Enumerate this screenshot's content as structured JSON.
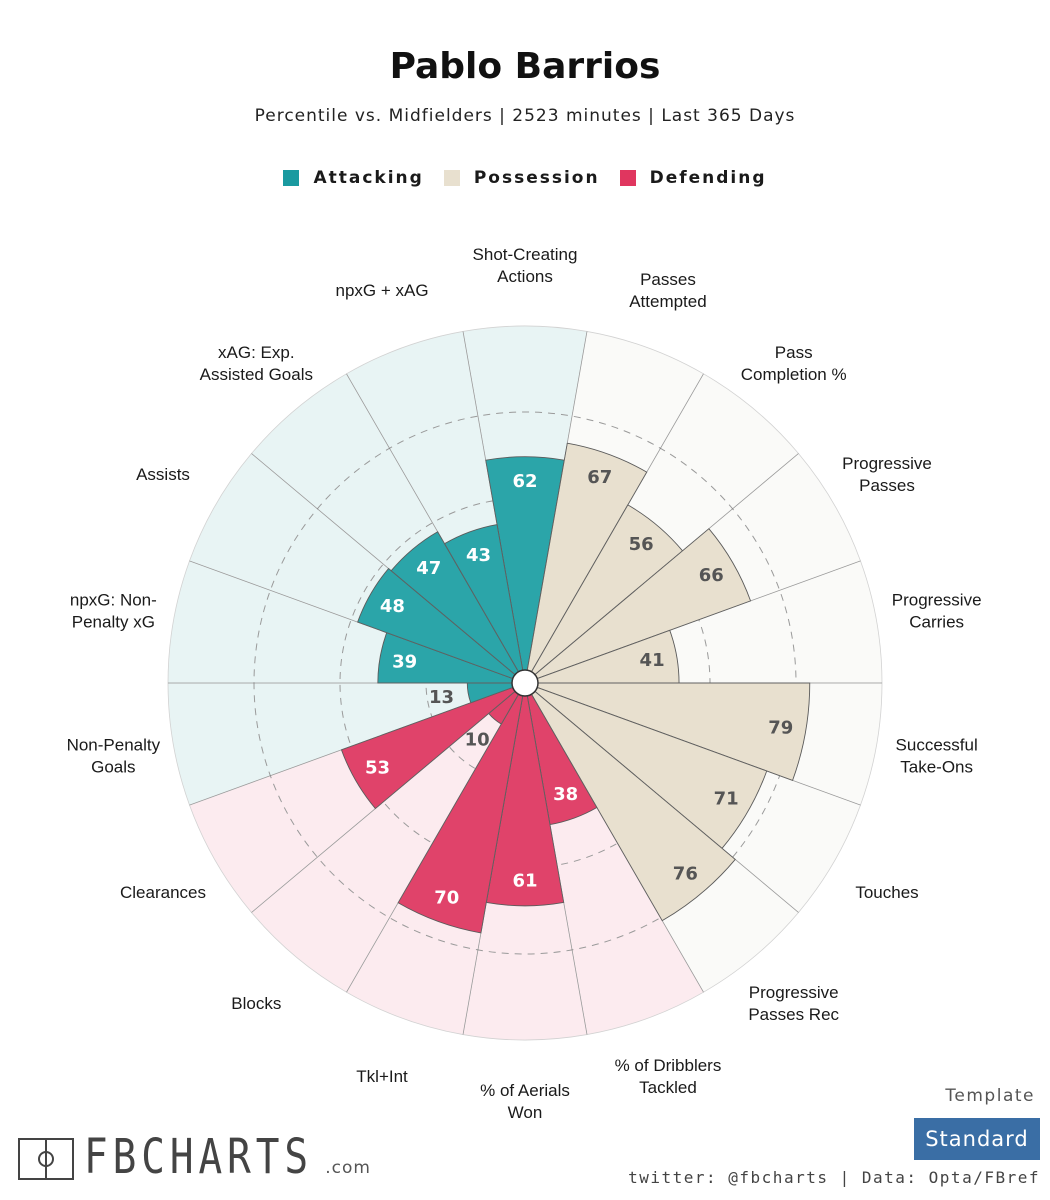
{
  "title": "Pablo Barrios",
  "subtitle": "Percentile vs. Midfielders | 2523 minutes | Last 365 Days",
  "legend": [
    {
      "label": "Attacking",
      "color": "#1a9aa0"
    },
    {
      "label": "Possession",
      "color": "#e8e0cf"
    },
    {
      "label": "Defending",
      "color": "#e0365f"
    }
  ],
  "template_label": "Template",
  "template_value": "Standard",
  "footer": "twitter: @fbcharts | Data: Opta/FBref",
  "logo": {
    "text": "FBCHARTS",
    "suffix": ".com"
  },
  "colors": {
    "attacking": "#2ba5a9",
    "attacking_bg": "#e8f4f4",
    "possession": "#e8e0cf",
    "possession_bg": "#fafaf8",
    "defending": "#e0436a",
    "defending_bg": "#fcebef"
  },
  "chart_data": {
    "type": "polar-bar",
    "title": "Pablo Barrios",
    "rlim": [
      0,
      100
    ],
    "categories": [
      {
        "label": "Shot-Creating\nActions",
        "value": 62,
        "group": "Attacking"
      },
      {
        "label": "Passes\nAttempted",
        "value": 67,
        "group": "Possession"
      },
      {
        "label": "Pass\nCompletion %",
        "value": 56,
        "group": "Possession"
      },
      {
        "label": "Progressive\nPasses",
        "value": 66,
        "group": "Possession"
      },
      {
        "label": "Progressive\nCarries",
        "value": 41,
        "group": "Possession"
      },
      {
        "label": "Successful\nTake-Ons",
        "value": 79,
        "group": "Possession"
      },
      {
        "label": "Touches",
        "value": 71,
        "group": "Possession"
      },
      {
        "label": "Progressive\nPasses Rec",
        "value": 76,
        "group": "Possession"
      },
      {
        "label": "% of Dribblers\nTackled",
        "value": 38,
        "group": "Defending"
      },
      {
        "label": "% of Aerials\nWon",
        "value": 61,
        "group": "Defending"
      },
      {
        "label": "Tkl+Int",
        "value": 70,
        "group": "Defending"
      },
      {
        "label": "Blocks",
        "value": 10,
        "group": "Defending"
      },
      {
        "label": "Clearances",
        "value": 53,
        "group": "Defending"
      },
      {
        "label": "Non-Penalty\nGoals",
        "value": 13,
        "group": "Attacking"
      },
      {
        "label": "npxG: Non-\nPenalty xG",
        "value": 39,
        "group": "Attacking"
      },
      {
        "label": "Assists",
        "value": 48,
        "group": "Attacking"
      },
      {
        "label": "xAG: Exp.\nAssisted Goals",
        "value": 47,
        "group": "Attacking"
      },
      {
        "label": "npxG + xAG",
        "value": 43,
        "group": "Attacking"
      }
    ]
  }
}
